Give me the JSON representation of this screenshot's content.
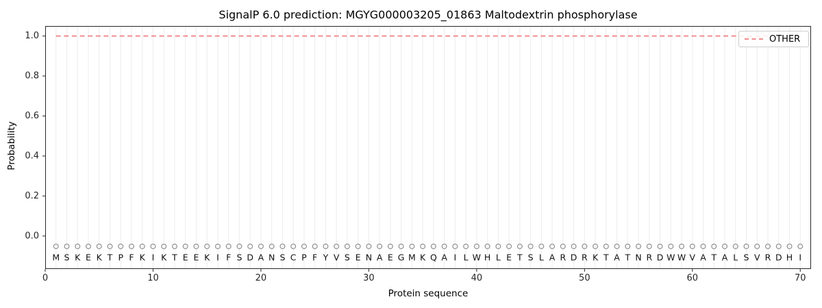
{
  "figure": {
    "title": "SignalP 6.0 prediction: MGYG000003205_01863 Maltodextrin phosphorylase",
    "xlabel": "Protein sequence",
    "ylabel": "Probability",
    "legend": {
      "label": "OTHER"
    }
  },
  "colors": {
    "other_line": "#f18c8c",
    "gridline": "#ececec",
    "marker_stroke": "#8f8f8f",
    "spine": "#262626",
    "tick_label": "#262626",
    "sequence_letter": "#111111",
    "background": "#ffffff",
    "legend_border": "#cccccc"
  },
  "chart_data": {
    "type": "line",
    "title": "SignalP 6.0 prediction: MGYG000003205_01863 Maltodextrin phosphorylase",
    "xlabel": "Protein sequence",
    "ylabel": "Probability",
    "xlim": [
      0,
      71
    ],
    "ylim": [
      -0.165,
      1.05
    ],
    "x_ticks": [
      0,
      10,
      20,
      30,
      40,
      50,
      60,
      70
    ],
    "y_ticks": [
      "0.0",
      "0.2",
      "0.4",
      "0.6",
      "0.8",
      "1.0"
    ],
    "grid": "vertical gridline at every residue position",
    "legend_position": "upper right",
    "series": [
      {
        "name": "OTHER",
        "style": "dashed",
        "color": "#f18c8c",
        "x_start": 1,
        "x_step": 1,
        "values": [
          1.0,
          1.0,
          1.0,
          1.0,
          1.0,
          1.0,
          1.0,
          1.0,
          1.0,
          1.0,
          1.0,
          1.0,
          1.0,
          1.0,
          1.0,
          1.0,
          1.0,
          1.0,
          1.0,
          1.0,
          1.0,
          1.0,
          1.0,
          1.0,
          1.0,
          1.0,
          1.0,
          1.0,
          1.0,
          1.0,
          1.0,
          1.0,
          1.0,
          1.0,
          1.0,
          1.0,
          1.0,
          1.0,
          1.0,
          1.0,
          1.0,
          1.0,
          1.0,
          1.0,
          1.0,
          1.0,
          1.0,
          1.0,
          1.0,
          1.0,
          1.0,
          1.0,
          1.0,
          1.0,
          1.0,
          1.0,
          1.0,
          1.0,
          1.0,
          1.0,
          1.0,
          1.0,
          1.0,
          1.0,
          1.0,
          1.0,
          1.0,
          1.0,
          1.0,
          1.0
        ]
      }
    ],
    "sequence": "MSKEKTPFKIKTEEKIFSDANSCPFYVSENAEGMKQAILWHLETSLARDRKTATNRDWWVATALSVRDHI",
    "sequence_length": 70,
    "marker_row": {
      "symbol": "open-circle",
      "y": -0.052,
      "radius_px": 3.4
    },
    "letter_row": {
      "y": -0.107
    }
  }
}
